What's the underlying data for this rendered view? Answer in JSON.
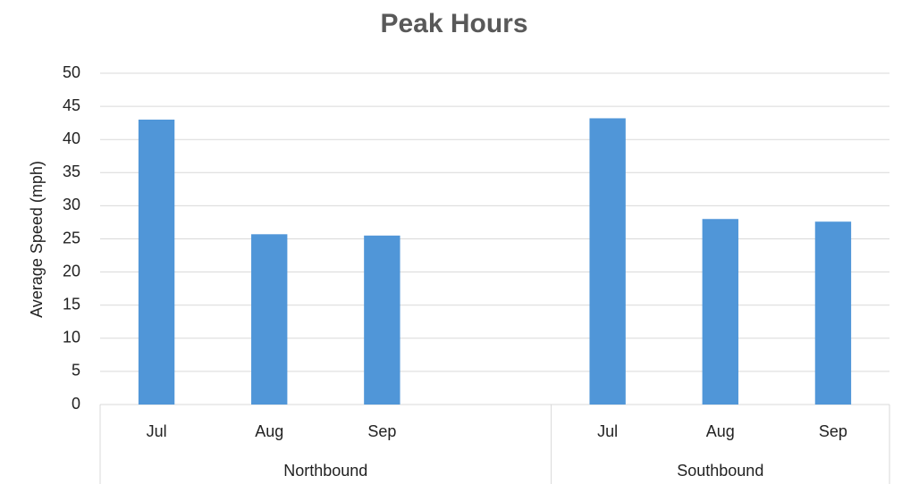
{
  "chart_data": {
    "type": "bar",
    "title": "Peak Hours",
    "y_label": "Average Speed (mph)",
    "groups": [
      {
        "name": "Northbound",
        "categories": [
          "Jul",
          "Aug",
          "Sep",
          null
        ],
        "values": [
          43,
          25.7,
          25.5,
          null
        ]
      },
      {
        "name": "Southbound",
        "categories": [
          "Jul",
          "Aug",
          "Sep"
        ],
        "values": [
          43.2,
          28,
          27.6
        ]
      }
    ],
    "color": "#5096d8",
    "ylim": [
      0,
      50
    ],
    "yticks": [
      0,
      5,
      10,
      15,
      20,
      25,
      30,
      35,
      40,
      45,
      50
    ],
    "grid": true
  }
}
